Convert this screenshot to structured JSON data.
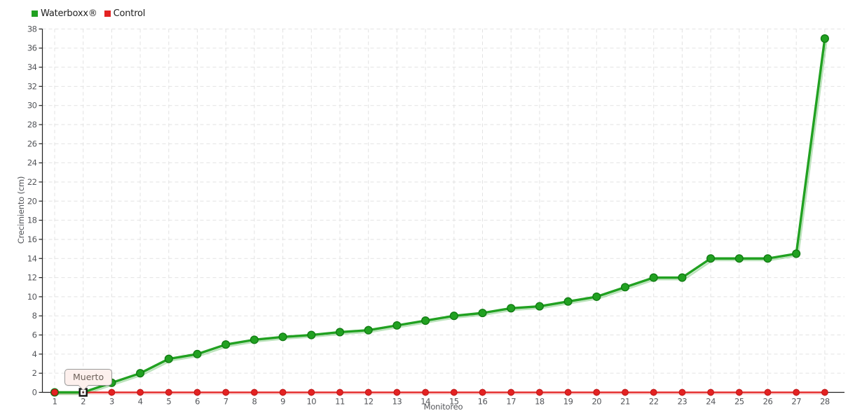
{
  "chart_data": {
    "type": "line",
    "xlabel": "Monitoreo",
    "ylabel": "Crecimiento (cm)",
    "categories": [
      1,
      2,
      3,
      4,
      5,
      6,
      7,
      8,
      9,
      10,
      11,
      12,
      13,
      14,
      15,
      16,
      17,
      18,
      19,
      20,
      21,
      22,
      23,
      24,
      25,
      26,
      27,
      28
    ],
    "ylim": [
      0,
      38
    ],
    "ytick_step": 2,
    "grid": true,
    "legend_position": "top-left",
    "series": [
      {
        "name": "Waterboxx®",
        "color": "#21a121",
        "marker_stroke": "#107a12",
        "marker": "circle",
        "values": [
          0,
          0,
          1,
          2,
          3.5,
          4,
          5,
          5.5,
          5.8,
          6,
          6.3,
          6.5,
          7,
          7.5,
          8,
          8.3,
          8.8,
          9,
          9.5,
          10,
          11,
          12,
          12,
          14,
          14,
          14,
          14.5,
          37
        ]
      },
      {
        "name": "Control",
        "color": "#e32222",
        "marker_stroke": "#bd1616",
        "marker": "circle",
        "values": [
          0,
          0,
          0,
          0,
          0,
          0,
          0,
          0,
          0,
          0,
          0,
          0,
          0,
          0,
          0,
          0,
          0,
          0,
          0,
          0,
          0,
          0,
          0,
          0,
          0,
          0,
          0,
          0
        ]
      }
    ],
    "annotation": {
      "text": "Muerto",
      "series": "Control",
      "x": 2,
      "y": 0
    },
    "axis_color": "#222222",
    "grid_color": "#e2e2e2",
    "tick_label_color": "#54565a"
  }
}
